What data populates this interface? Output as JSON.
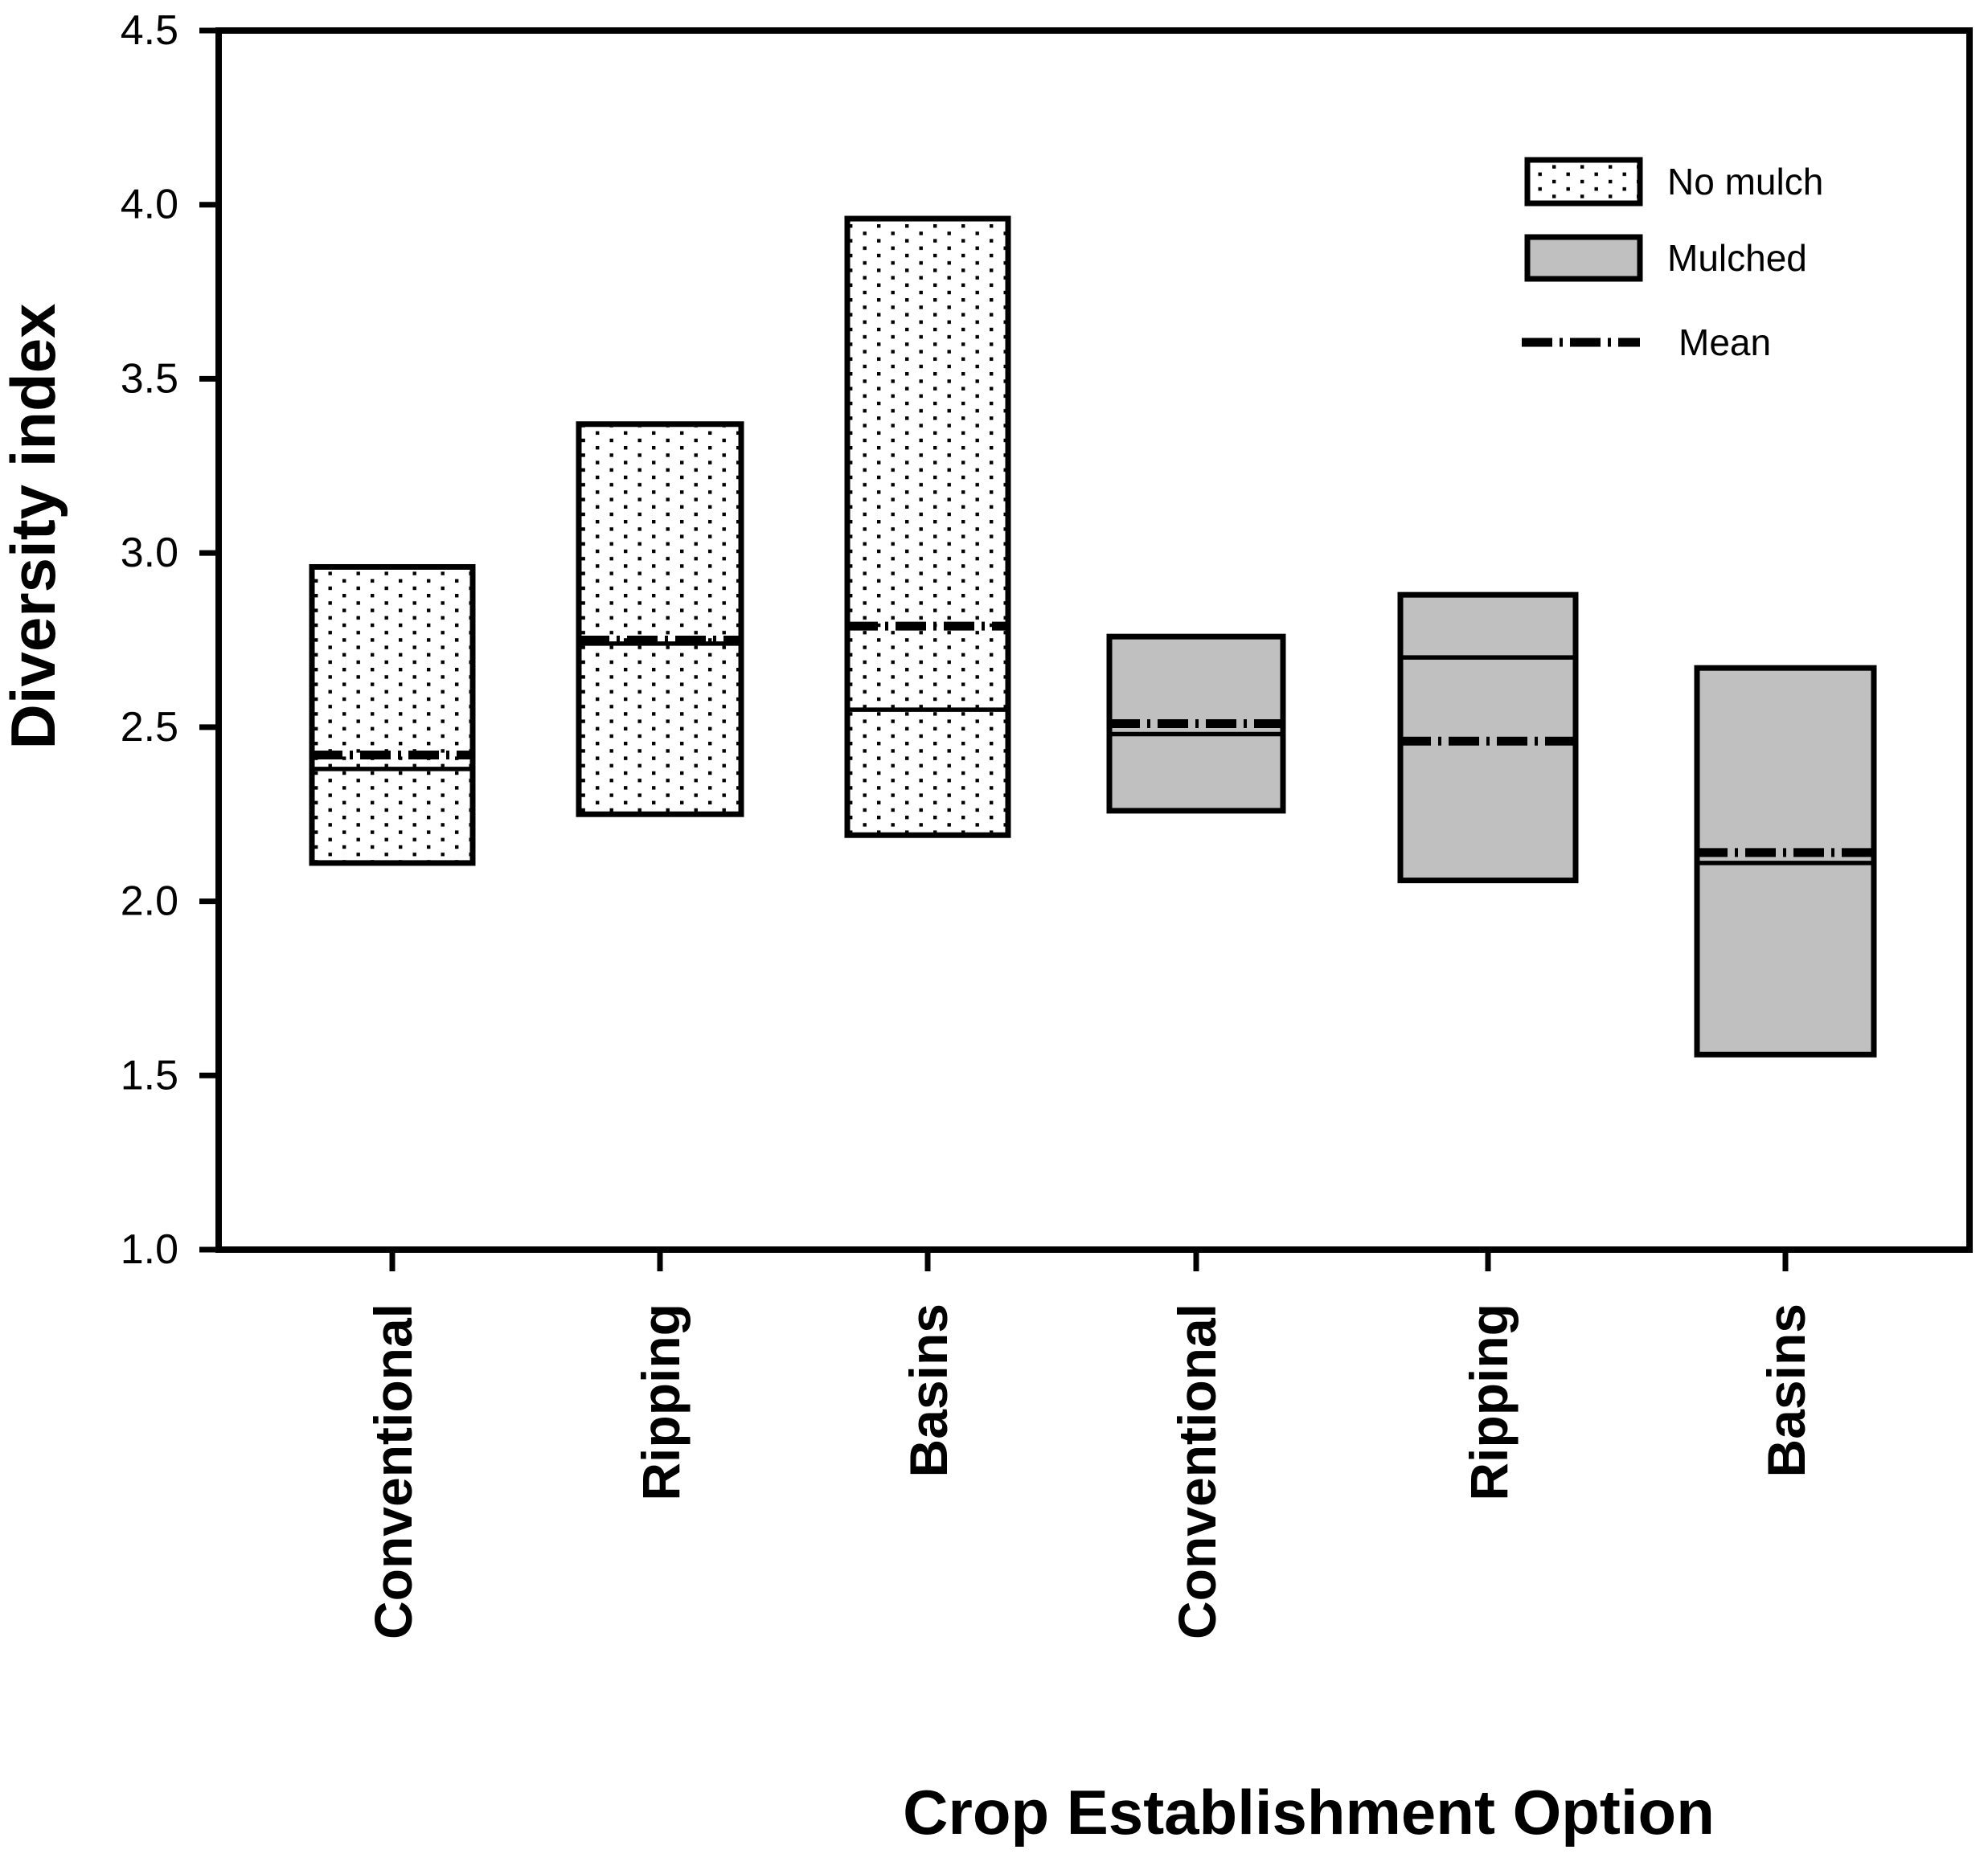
{
  "figure": {
    "background_color": "#ffffff",
    "ink_color": "#000000",
    "mulched_fill_color": "#c0c0c0",
    "no_mulch_fill": "white with black dot pattern"
  },
  "chart_data": {
    "type": "box",
    "title": "",
    "xlabel": "Crop Establishment Option",
    "ylabel": "Diversity index",
    "ylim": [
      1.0,
      4.5
    ],
    "yticks": [
      4.5,
      4.0,
      3.5,
      3.0,
      2.5,
      2.0,
      1.5,
      1.0
    ],
    "ytick_labels": [
      "4.5",
      "4.0",
      "3.5",
      "3.0",
      "2.5",
      "2.0",
      "1.5",
      "1.0"
    ],
    "categories": [
      "Conventional",
      "Ripping",
      "Basins",
      "Conventional",
      "Ripping",
      "Basins"
    ],
    "grid": false,
    "legend_position": "top-right-inside",
    "series": [
      {
        "name": "No mulch",
        "fill": "dotted",
        "boxes": [
          {
            "category": "Conventional",
            "min": 2.11,
            "max": 2.96,
            "median": 2.38,
            "mean": 2.42
          },
          {
            "category": "Ripping",
            "min": 2.25,
            "max": 3.37,
            "median": 2.74,
            "mean": 2.75
          },
          {
            "category": "Basins",
            "min": 2.19,
            "max": 3.96,
            "median": 2.55,
            "mean": 2.79
          }
        ]
      },
      {
        "name": "Mulched",
        "fill": "gray",
        "boxes": [
          {
            "category": "Conventional",
            "min": 2.26,
            "max": 2.76,
            "median": 2.48,
            "mean": 2.51
          },
          {
            "category": "Ripping",
            "min": 2.06,
            "max": 2.88,
            "median": 2.7,
            "mean": 2.46
          },
          {
            "category": "Basins",
            "min": 1.56,
            "max": 2.67,
            "median": 2.11,
            "mean": 2.14
          }
        ]
      }
    ],
    "legend": {
      "entries": [
        {
          "label": "No mulch",
          "swatch": "dotted-box"
        },
        {
          "label": "Mulched",
          "swatch": "gray-box"
        },
        {
          "label": "Mean",
          "swatch": "dashed-line"
        }
      ]
    }
  }
}
